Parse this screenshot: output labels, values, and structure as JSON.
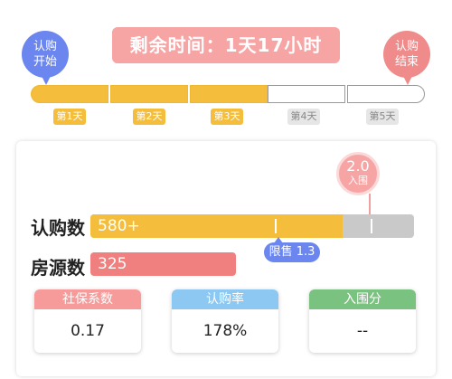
{
  "timeline": {
    "start_label": "认购\n开始",
    "end_label": "认购\n结束",
    "countdown": "剩余时间：1天17小时",
    "days": [
      {
        "label": "第1天",
        "active": true
      },
      {
        "label": "第2天",
        "active": true
      },
      {
        "label": "第3天",
        "active": true
      },
      {
        "label": "第4天",
        "active": false
      },
      {
        "label": "第5天",
        "active": false
      }
    ]
  },
  "limit_marker": {
    "value": "2.0",
    "label": "入围"
  },
  "subscription": {
    "label": "认购数",
    "value": "580+",
    "progress": 0.78
  },
  "housing": {
    "label": "房源数",
    "value": "325",
    "progress": 0.45
  },
  "sale_limit": "限售 1.3",
  "stats": [
    {
      "title": "社保系数",
      "value": "0.17",
      "color": "#f79a9a"
    },
    {
      "title": "认购率",
      "value": "178%",
      "color": "#8cc8f1"
    },
    {
      "title": "入围分",
      "value": "--",
      "color": "#7ac27f"
    }
  ],
  "colors": {
    "accent_yellow": "#f5bd3c",
    "accent_pink": "#f6a4a4",
    "accent_blue": "#6b86ef",
    "accent_green": "#7ac27f"
  }
}
